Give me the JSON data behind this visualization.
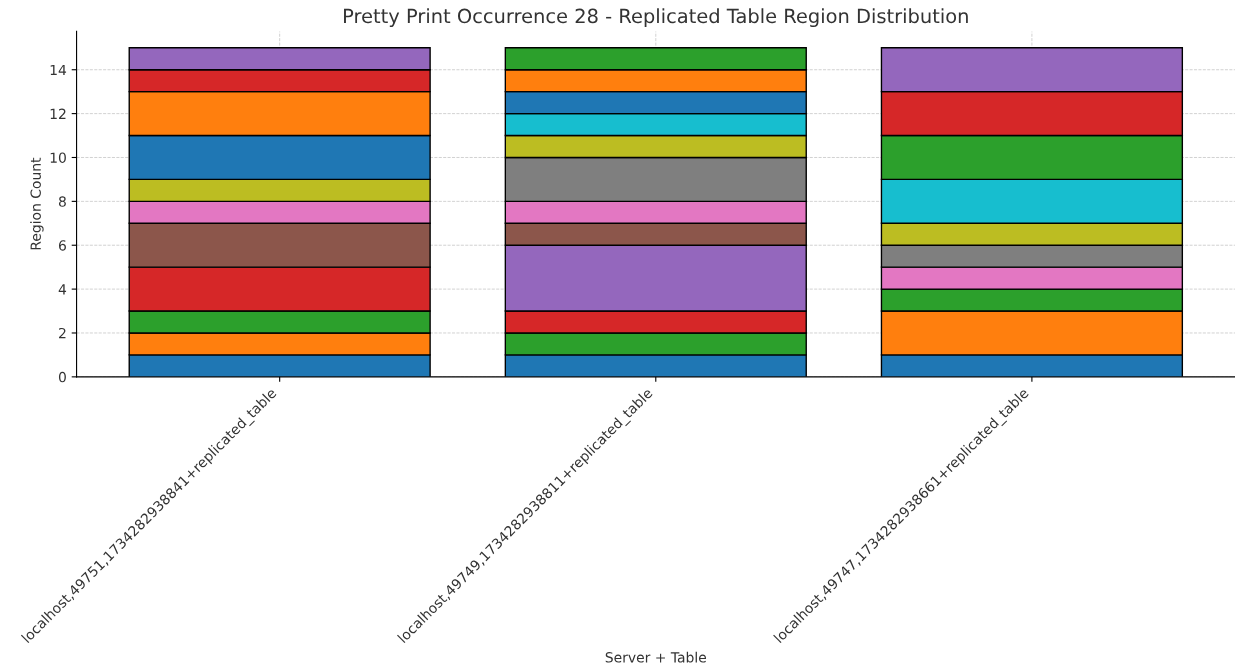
{
  "chart_data": {
    "type": "bar",
    "stacked": true,
    "title": "Pretty Print Occurrence 28 - Replicated Table Region Distribution",
    "xlabel": "Server + Table",
    "ylabel": "Region Count",
    "categories": [
      "localhost,49751,1734282938841+replicated_table",
      "localhost,49749,1734282938811+replicated_table",
      "localhost,49747,1734282938661+replicated_table"
    ],
    "series": [
      {
        "values": [
          1,
          1,
          1
        ],
        "colors": [
          "#1f77b4",
          "#1f77b4",
          "#1f77b4"
        ]
      },
      {
        "values": [
          1,
          1,
          2
        ],
        "colors": [
          "#ff7f0e",
          "#2ca02c",
          "#ff7f0e"
        ]
      },
      {
        "values": [
          1,
          1,
          1
        ],
        "colors": [
          "#2ca02c",
          "#d62728",
          "#2ca02c"
        ]
      },
      {
        "values": [
          2,
          3,
          1
        ],
        "colors": [
          "#d62728",
          "#9467bd",
          "#e377c2"
        ]
      },
      {
        "values": [
          2,
          1,
          1
        ],
        "colors": [
          "#8c564b",
          "#8c564b",
          "#7f7f7f"
        ]
      },
      {
        "values": [
          1,
          1,
          1
        ],
        "colors": [
          "#e377c2",
          "#e377c2",
          "#bcbd22"
        ]
      },
      {
        "values": [
          1,
          2,
          2
        ],
        "colors": [
          "#bcbd22",
          "#7f7f7f",
          "#17becf"
        ]
      },
      {
        "values": [
          2,
          1,
          2
        ],
        "colors": [
          "#1f77b4",
          "#bcbd22",
          "#2ca02c"
        ]
      },
      {
        "values": [
          2,
          1,
          2
        ],
        "colors": [
          "#ff7f0e",
          "#17becf",
          "#d62728"
        ]
      },
      {
        "values": [
          1,
          1,
          2
        ],
        "colors": [
          "#d62728",
          "#1f77b4",
          "#9467bd"
        ]
      },
      {
        "values": [
          1,
          1,
          null
        ],
        "colors": [
          "#9467bd",
          "#ff7f0e",
          null
        ]
      },
      {
        "values": [
          null,
          1,
          null
        ],
        "colors": [
          null,
          "#2ca02c",
          null
        ]
      }
    ],
    "ylim": [
      0,
      15.75
    ],
    "yticks": [
      0,
      2,
      4,
      6,
      8,
      10,
      12,
      14
    ],
    "grid": true,
    "line_style": "dashed"
  }
}
